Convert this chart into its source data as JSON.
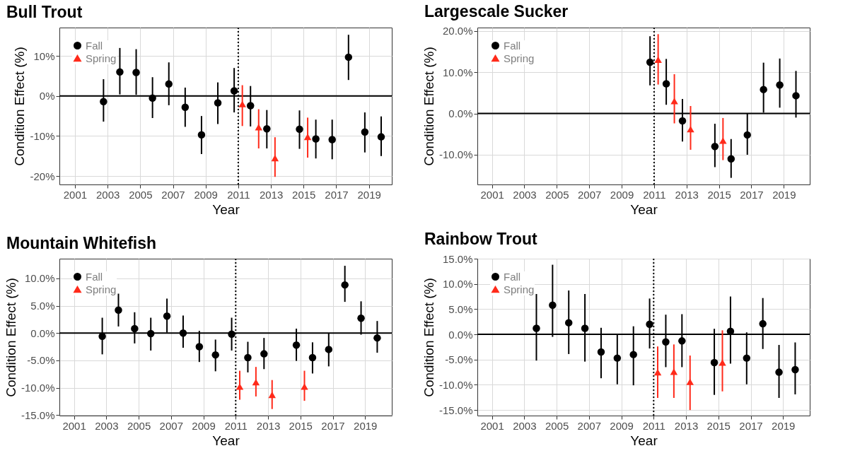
{
  "chart_data": [
    {
      "type": "scatter",
      "title": "Bull Trout",
      "xlabel": "Year",
      "ylabel": "Condition Effect (%)",
      "xlim": [
        2000.05,
        2020.4
      ],
      "xticks": [
        2001,
        2003,
        2005,
        2007,
        2009,
        2011,
        2013,
        2015,
        2017,
        2019
      ],
      "ylim": [
        -22.1,
        17.1
      ],
      "yticks": [
        {
          "value": -20,
          "label": "-20%"
        },
        {
          "value": -10,
          "label": "-10%"
        },
        {
          "value": 0,
          "label": "0%"
        },
        {
          "value": 10,
          "label": "10%"
        }
      ],
      "grid": true,
      "legend": "top left",
      "ref_lines": [
        {
          "axis": "y",
          "value": 0,
          "color": "#000000",
          "line_style": "solid"
        },
        {
          "axis": "x",
          "value": 2011,
          "color": "#000000",
          "line_style": "dotted"
        }
      ],
      "series": [
        {
          "name": "Fall",
          "color": "#000000",
          "marker": "circle",
          "x": [
            2002.75,
            2003.75,
            2004.75,
            2005.75,
            2006.75,
            2007.75,
            2008.75,
            2009.75,
            2010.75,
            2011.75,
            2012.75,
            2014.75,
            2015.75,
            2016.75,
            2017.75,
            2018.75,
            2019.75
          ],
          "values": [
            -1.4,
            6.0,
            5.9,
            -0.5,
            3.0,
            -2.8,
            -9.7,
            -1.7,
            1.3,
            -2.4,
            -8.2,
            -8.3,
            -10.7,
            -10.9,
            9.7,
            -9.0,
            -10.2
          ],
          "errors": [
            [
              -6.4,
              4.2
            ],
            [
              0.4,
              12.0
            ],
            [
              0.3,
              11.7
            ],
            [
              -5.5,
              4.7
            ],
            [
              -2.3,
              8.4
            ],
            [
              -7.7,
              2.1
            ],
            [
              -14.5,
              -5.0
            ],
            [
              -7.0,
              3.4
            ],
            [
              -4.1,
              7.0
            ],
            [
              -7.6,
              2.5
            ],
            [
              -13.1,
              -3.5
            ],
            [
              -13.2,
              -3.6
            ],
            [
              -15.6,
              -5.9
            ],
            [
              -15.8,
              -5.9
            ],
            [
              4.0,
              15.3
            ],
            [
              -14.1,
              -4.1
            ],
            [
              -15.0,
              -5.1
            ]
          ]
        },
        {
          "name": "Spring",
          "color": "#ff2a1a",
          "marker": "triangle",
          "x": [
            2011.25,
            2012.25,
            2013.25,
            2015.25
          ],
          "values": [
            -2.0,
            -7.8,
            -15.5,
            -10.2
          ],
          "errors": [
            [
              -7.5,
              2.7
            ],
            [
              -13.1,
              -3.3
            ],
            [
              -20.2,
              -10.3
            ],
            [
              -15.4,
              -5.4
            ]
          ]
        }
      ]
    },
    {
      "type": "scatter",
      "title": "Largescale Sucker",
      "xlabel": "Year",
      "ylabel": "Condition Effect (%)",
      "xlim": [
        2000.1,
        2020.6
      ],
      "xticks": [
        2001,
        2003,
        2005,
        2007,
        2009,
        2011,
        2013,
        2015,
        2017,
        2019
      ],
      "ylim": [
        -17.2,
        20.8
      ],
      "yticks": [
        {
          "value": -10,
          "label": "-10.0%"
        },
        {
          "value": 0,
          "label": "0.0%"
        },
        {
          "value": 10,
          "label": "10.0%"
        },
        {
          "value": 20,
          "label": "20.0%"
        }
      ],
      "grid": true,
      "legend": "top left",
      "ref_lines": [
        {
          "axis": "y",
          "value": 0,
          "color": "#000000",
          "line_style": "solid"
        },
        {
          "axis": "x",
          "value": 2011,
          "color": "#000000",
          "line_style": "dotted"
        }
      ],
      "series": [
        {
          "name": "Fall",
          "color": "#000000",
          "marker": "circle",
          "x": [
            2010.75,
            2011.75,
            2012.75,
            2014.75,
            2015.75,
            2016.75,
            2017.75,
            2018.75,
            2019.75
          ],
          "values": [
            12.4,
            7.2,
            -1.8,
            -8.0,
            -11.0,
            -5.2,
            5.8,
            6.9,
            4.3
          ],
          "errors": [
            [
              6.8,
              18.7
            ],
            [
              2.1,
              13.2
            ],
            [
              -6.8,
              3.5
            ],
            [
              -13.0,
              -2.5
            ],
            [
              -15.6,
              -6.2
            ],
            [
              -10.0,
              0.0
            ],
            [
              0.2,
              12.3
            ],
            [
              1.4,
              13.3
            ],
            [
              -1.0,
              10.3
            ]
          ]
        },
        {
          "name": "Spring",
          "color": "#ff2a1a",
          "marker": "triangle",
          "x": [
            2011.25,
            2012.25,
            2013.25,
            2015.25
          ],
          "values": [
            13.0,
            3.0,
            -3.8,
            -6.6
          ],
          "errors": [
            [
              7.0,
              19.2
            ],
            [
              -2.4,
              9.5
            ],
            [
              -8.8,
              1.8
            ],
            [
              -11.3,
              -1.1
            ]
          ]
        }
      ]
    },
    {
      "type": "scatter",
      "title": "Mountain Whitefish",
      "xlabel": "Year",
      "ylabel": "Condition Effect (%)",
      "xlim": [
        2000.1,
        2020.65
      ],
      "xticks": [
        2001,
        2003,
        2005,
        2007,
        2009,
        2011,
        2013,
        2015,
        2017,
        2019
      ],
      "ylim": [
        -15.1,
        13.6
      ],
      "yticks": [
        {
          "value": -15,
          "label": "-15.0%"
        },
        {
          "value": -10,
          "label": "-10.0%"
        },
        {
          "value": -5,
          "label": "-5.0%"
        },
        {
          "value": 0,
          "label": "0.0%"
        },
        {
          "value": 5,
          "label": "5.0%"
        },
        {
          "value": 10,
          "label": "10.0%"
        }
      ],
      "grid": true,
      "legend": "top left",
      "ref_lines": [
        {
          "axis": "y",
          "value": 0,
          "color": "#000000",
          "line_style": "solid"
        },
        {
          "axis": "x",
          "value": 2011,
          "color": "#000000",
          "line_style": "dotted"
        }
      ],
      "series": [
        {
          "name": "Fall",
          "color": "#000000",
          "marker": "circle",
          "x": [
            2002.75,
            2003.75,
            2004.75,
            2005.75,
            2006.75,
            2007.75,
            2008.75,
            2009.75,
            2010.75,
            2011.75,
            2012.75,
            2014.75,
            2015.75,
            2016.75,
            2017.75,
            2018.75,
            2019.75
          ],
          "values": [
            -0.6,
            4.2,
            0.8,
            -0.1,
            3.1,
            0.0,
            -2.5,
            -4.0,
            -0.2,
            -4.5,
            -3.8,
            -2.2,
            -4.5,
            -3.0,
            8.8,
            2.7,
            -0.9
          ],
          "errors": [
            [
              -3.9,
              2.8
            ],
            [
              1.2,
              7.2
            ],
            [
              -1.9,
              3.8
            ],
            [
              -3.2,
              2.8
            ],
            [
              0.1,
              6.3
            ],
            [
              -2.7,
              3.2
            ],
            [
              -5.3,
              0.4
            ],
            [
              -7.0,
              -1.2
            ],
            [
              -3.2,
              2.8
            ],
            [
              -7.2,
              -1.6
            ],
            [
              -6.6,
              -0.9
            ],
            [
              -5.1,
              0.8
            ],
            [
              -7.4,
              -1.7
            ],
            [
              -6.1,
              0.0
            ],
            [
              5.7,
              12.3
            ],
            [
              -0.3,
              5.8
            ],
            [
              -3.6,
              2.2
            ]
          ]
        },
        {
          "name": "Spring",
          "color": "#ff2a1a",
          "marker": "triangle",
          "x": [
            2011.25,
            2012.25,
            2013.25,
            2015.25
          ],
          "values": [
            -9.8,
            -9.0,
            -11.3,
            -9.8
          ],
          "errors": [
            [
              -12.2,
              -6.9
            ],
            [
              -11.6,
              -6.2
            ],
            [
              -13.9,
              -8.6
            ],
            [
              -12.4,
              -6.9
            ]
          ]
        }
      ]
    },
    {
      "type": "scatter",
      "title": "Rainbow Trout",
      "xlabel": "Year",
      "ylabel": "Condition Effect (%)",
      "xlim": [
        2000.1,
        2020.65
      ],
      "xticks": [
        2001,
        2003,
        2005,
        2007,
        2009,
        2011,
        2013,
        2015,
        2017,
        2019
      ],
      "ylim": [
        -16.1,
        15.0
      ],
      "yticks": [
        {
          "value": -15,
          "label": "-15.0%"
        },
        {
          "value": -10,
          "label": "-10.0%"
        },
        {
          "value": -5,
          "label": "-5.0%"
        },
        {
          "value": 0,
          "label": "0.0%"
        },
        {
          "value": 5,
          "label": "5.0%"
        },
        {
          "value": 10,
          "label": "10.0%"
        },
        {
          "value": 15,
          "label": "15.0%"
        }
      ],
      "grid": true,
      "legend": "top left",
      "ref_lines": [
        {
          "axis": "y",
          "value": 0,
          "color": "#000000",
          "line_style": "solid"
        },
        {
          "axis": "x",
          "value": 2011,
          "color": "#000000",
          "line_style": "dotted"
        }
      ],
      "series": [
        {
          "name": "Fall",
          "color": "#000000",
          "marker": "circle",
          "x": [
            2003.75,
            2004.75,
            2005.75,
            2006.75,
            2007.75,
            2008.75,
            2009.75,
            2010.75,
            2011.75,
            2012.75,
            2014.75,
            2015.75,
            2016.75,
            2017.75,
            2018.75,
            2019.75
          ],
          "values": [
            1.2,
            5.8,
            2.3,
            1.2,
            -3.5,
            -4.7,
            -4.0,
            2.0,
            -1.5,
            -1.3,
            -5.6,
            0.6,
            -4.7,
            2.1,
            -7.5,
            -7.0
          ],
          "errors": [
            [
              -5.2,
              8.0
            ],
            [
              -0.5,
              13.8
            ],
            [
              -3.9,
              8.7
            ],
            [
              -5.4,
              8.0
            ],
            [
              -8.7,
              1.3
            ],
            [
              -9.9,
              0.1
            ],
            [
              -10.1,
              1.6
            ],
            [
              -2.8,
              7.1
            ],
            [
              -6.5,
              3.9
            ],
            [
              -6.5,
              4.0
            ],
            [
              -12.0,
              1.1
            ],
            [
              -5.8,
              7.5
            ],
            [
              -9.9,
              0.4
            ],
            [
              -2.9,
              7.2
            ],
            [
              -12.6,
              -2.1
            ],
            [
              -11.9,
              -1.6
            ]
          ]
        },
        {
          "name": "Spring",
          "color": "#ff2a1a",
          "marker": "triangle",
          "x": [
            2011.25,
            2012.25,
            2013.25,
            2015.25
          ],
          "values": [
            -7.5,
            -7.4,
            -9.4,
            -5.6
          ],
          "errors": [
            [
              -12.6,
              -2.4
            ],
            [
              -12.6,
              -2.0
            ],
            [
              -15.0,
              -4.2
            ],
            [
              -11.3,
              0.8
            ]
          ]
        }
      ]
    }
  ]
}
